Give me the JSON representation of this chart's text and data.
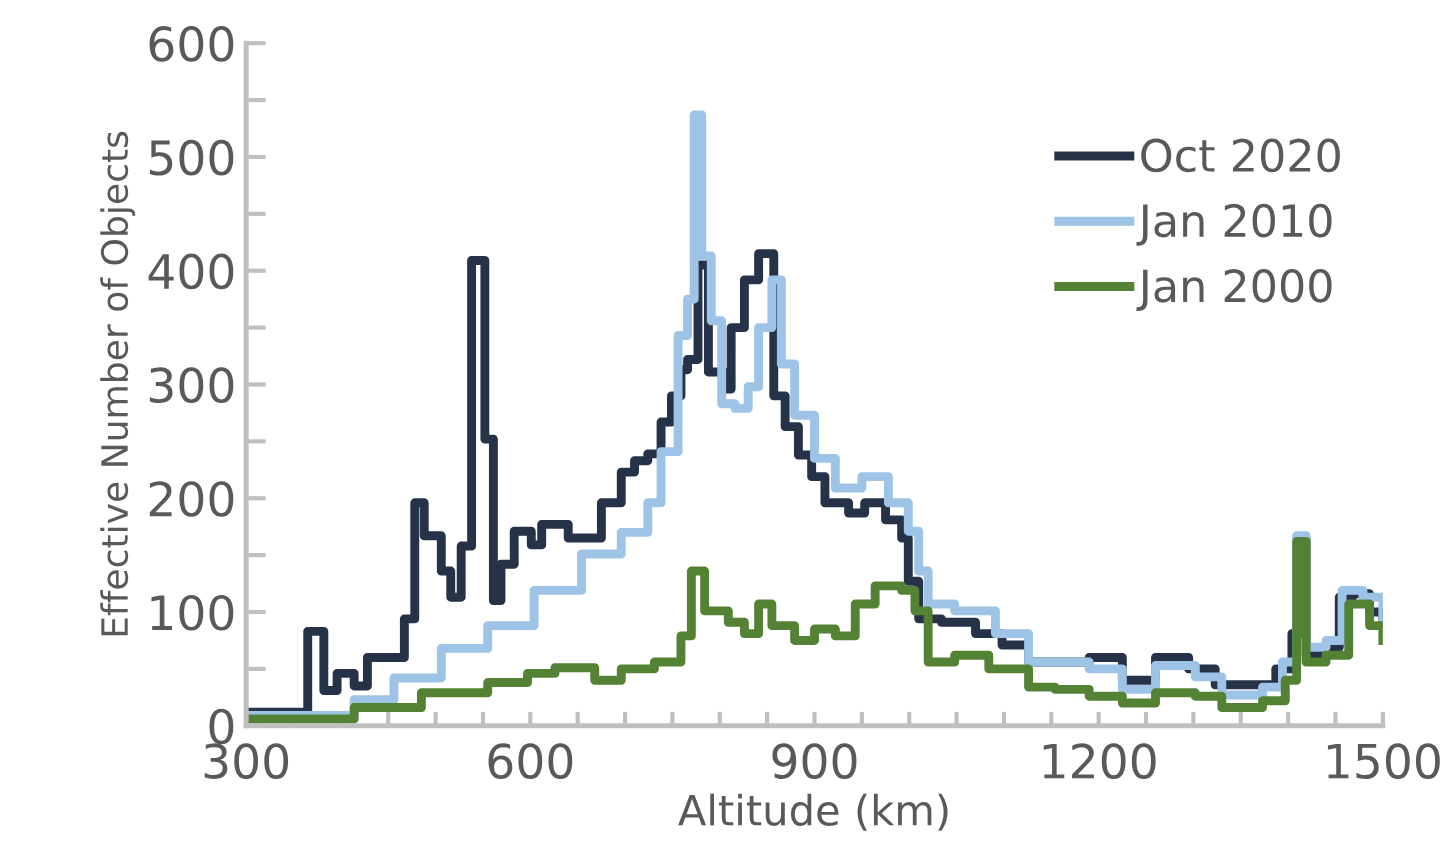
{
  "chart_data": {
    "type": "step",
    "xlabel": "Altitude (km)",
    "ylabel": "Effective Number of Objects",
    "xlim": [
      300,
      1500
    ],
    "ylim": [
      0,
      600
    ],
    "xticks": [
      300,
      {
        "value": 350,
        "label": null
      },
      {
        "value": 400,
        "label": null
      },
      {
        "value": 450,
        "label": null
      },
      {
        "value": 500,
        "label": null
      },
      {
        "value": 550,
        "label": null
      },
      600,
      {
        "value": 650,
        "label": null
      },
      {
        "value": 700,
        "label": null
      },
      {
        "value": 750,
        "label": null
      },
      {
        "value": 800,
        "label": null
      },
      {
        "value": 850,
        "label": null
      },
      900,
      {
        "value": 950,
        "label": null
      },
      {
        "value": 1000,
        "label": null
      },
      {
        "value": 1050,
        "label": null
      },
      {
        "value": 1100,
        "label": null
      },
      {
        "value": 1150,
        "label": null
      },
      1200,
      {
        "value": 1250,
        "label": null
      },
      {
        "value": 1300,
        "label": null
      },
      {
        "value": 1350,
        "label": null
      },
      {
        "value": 1400,
        "label": null
      },
      {
        "value": 1450,
        "label": null
      },
      1500
    ],
    "yticks": [
      0,
      {
        "value": 50,
        "label": null
      },
      100,
      {
        "value": 150,
        "label": null
      },
      200,
      {
        "value": 250,
        "label": null
      },
      300,
      {
        "value": 350,
        "label": null
      },
      400,
      {
        "value": 450,
        "label": null
      },
      500,
      {
        "value": 550,
        "label": null
      },
      600
    ],
    "legend": "top right",
    "grid": false,
    "line_style": "solid",
    "series": [
      {
        "name": "Oct 2020",
        "color": "#263248",
        "x": [
          300,
          365,
          382,
          396,
          414,
          428,
          467,
          478,
          488,
          506,
          516,
          527,
          538,
          552,
          561,
          569,
          583,
          601,
          612,
          640,
          675,
          696,
          710,
          724,
          738,
          749,
          759,
          766,
          777,
          788,
          805,
          812,
          826,
          841,
          857,
          869,
          883,
          897,
          911,
          936,
          953,
          975,
          992,
          999,
          1010,
          1034,
          1070,
          1098,
          1126,
          1190,
          1225,
          1260,
          1295,
          1323,
          1359,
          1387,
          1404,
          1412,
          1419,
          1436,
          1454,
          1468,
          1486,
          1500
        ],
        "values": [
          12,
          83,
          31,
          46,
          35,
          60,
          94,
          196,
          167,
          136,
          113,
          158,
          409,
          252,
          110,
          142,
          171,
          159,
          177,
          165,
          196,
          223,
          233,
          239,
          267,
          290,
          313,
          322,
          405,
          311,
          296,
          350,
          392,
          415,
          290,
          263,
          238,
          219,
          196,
          187,
          196,
          181,
          165,
          127,
          94,
          91,
          81,
          71,
          56,
          60,
          40,
          60,
          50,
          36,
          36,
          50,
          81,
          165,
          63,
          69,
          113,
          116,
          100,
          94
        ]
      },
      {
        "name": "Jan 2010",
        "color": "#9dc3e6",
        "x": [
          300,
          414,
          456,
          506,
          555,
          604,
          654,
          696,
          724,
          738,
          756,
          766,
          773,
          781,
          791,
          802,
          816,
          830,
          841,
          855,
          865,
          879,
          900,
          922,
          950,
          978,
          999,
          1010,
          1020,
          1048,
          1091,
          1126,
          1190,
          1225,
          1260,
          1302,
          1330,
          1373,
          1394,
          1409,
          1419,
          1440,
          1457,
          1479,
          1500
        ],
        "values": [
          9,
          23,
          42,
          68,
          88,
          119,
          151,
          170,
          196,
          241,
          343,
          375,
          537,
          413,
          356,
          283,
          279,
          298,
          350,
          392,
          318,
          273,
          235,
          209,
          219,
          196,
          171,
          136,
          107,
          101,
          81,
          56,
          50,
          32,
          53,
          43,
          27,
          34,
          56,
          167,
          69,
          75,
          119,
          113,
          90
        ]
      },
      {
        "name": "Jan 2000",
        "color": "#548235",
        "x": [
          300,
          414,
          485,
          555,
          597,
          626,
          668,
          696,
          731,
          759,
          770,
          784,
          809,
          826,
          841,
          855,
          879,
          900,
          922,
          943,
          964,
          992,
          1006,
          1020,
          1048,
          1084,
          1126,
          1154,
          1190,
          1225,
          1260,
          1302,
          1330,
          1373,
          1397,
          1409,
          1419,
          1440,
          1464,
          1486,
          1500
        ],
        "values": [
          6,
          16,
          29,
          38,
          46,
          51,
          40,
          50,
          56,
          79,
          136,
          101,
          91,
          81,
          107,
          88,
          75,
          85,
          79,
          107,
          123,
          119,
          101,
          56,
          62,
          50,
          34,
          32,
          26,
          20,
          29,
          26,
          16,
          22,
          40,
          162,
          56,
          62,
          107,
          88,
          75
        ]
      }
    ]
  }
}
